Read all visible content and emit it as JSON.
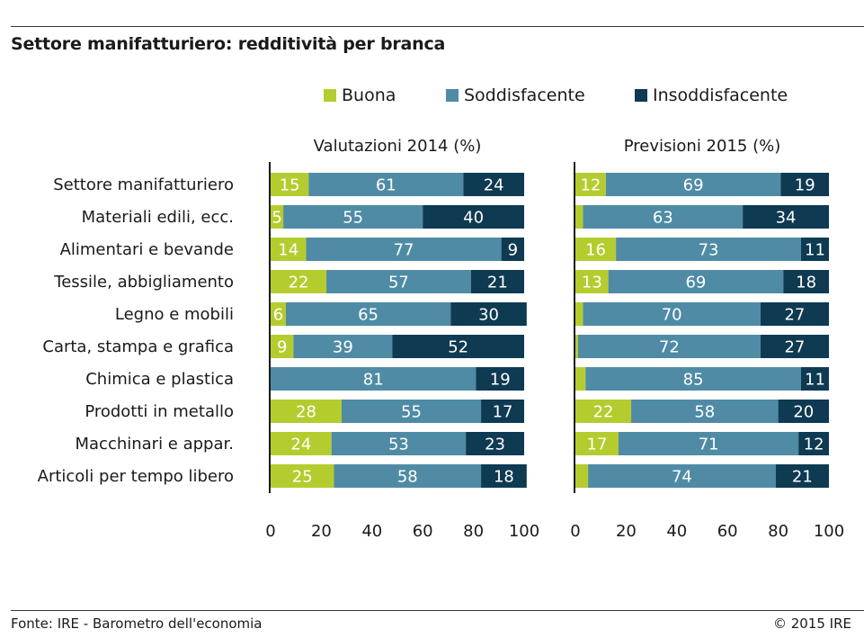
{
  "title": "Settore manifatturiero: redditività per branca",
  "legend": [
    {
      "label": "Buona",
      "color": "#b5cc2e"
    },
    {
      "label": "Soddisfacente",
      "color": "#4f8ba5"
    },
    {
      "label": "Insoddisfacente",
      "color": "#0e3a52"
    }
  ],
  "footer": {
    "source": "Fonte: IRE - Barometro dell'economia",
    "copyright": "© 2015 IRE"
  },
  "chart_data": {
    "type": "bar",
    "orientation": "horizontal-stacked",
    "categories": [
      "Settore manifatturiero",
      "Materiali edili, ecc.",
      "Alimentari e bevande",
      "Tessile, abbigliamento",
      "Legno e mobili",
      "Carta, stampa e grafica",
      "Chimica e plastica",
      "Prodotti in metallo",
      "Macchinari e appar.",
      "Articoli per tempo libero"
    ],
    "xlim": [
      0,
      100
    ],
    "xticks": [
      "0",
      "20",
      "40",
      "60",
      "80",
      "100"
    ],
    "panels": [
      {
        "title": "Valutazioni 2014 (%)",
        "series": [
          {
            "name": "Buona",
            "values": [
              15,
              5,
              14,
              22,
              6,
              9,
              0,
              28,
              24,
              25
            ],
            "labels": [
              "15",
              "5",
              "14",
              "22",
              "6",
              "9",
              "",
              "28",
              "24",
              "25"
            ]
          },
          {
            "name": "Soddisfacente",
            "values": [
              61,
              55,
              77,
              57,
              65,
              39,
              81,
              55,
              53,
              58
            ],
            "labels": [
              "61",
              "55",
              "77",
              "57",
              "65",
              "39",
              "81",
              "55",
              "53",
              "58"
            ]
          },
          {
            "name": "Insoddisfacente",
            "values": [
              24,
              40,
              9,
              21,
              30,
              52,
              19,
              17,
              23,
              18
            ],
            "labels": [
              "24",
              "40",
              "9",
              "21",
              "30",
              "52",
              "19",
              "17",
              "23",
              "18"
            ]
          }
        ]
      },
      {
        "title": "Previsioni 2015 (%)",
        "series": [
          {
            "name": "Buona",
            "values": [
              12,
              3,
              16,
              13,
              3,
              1,
              4,
              22,
              17,
              5
            ],
            "labels": [
              "12",
              "",
              "16",
              "13",
              "",
              "",
              "",
              "22",
              "17",
              ""
            ]
          },
          {
            "name": "Soddisfacente",
            "values": [
              69,
              63,
              73,
              69,
              70,
              72,
              85,
              58,
              71,
              74
            ],
            "labels": [
              "69",
              "63",
              "73",
              "69",
              "70",
              "72",
              "85",
              "58",
              "71",
              "74"
            ]
          },
          {
            "name": "Insoddisfacente",
            "values": [
              19,
              34,
              11,
              18,
              27,
              27,
              11,
              20,
              12,
              21
            ],
            "labels": [
              "19",
              "34",
              "11",
              "18",
              "27",
              "27",
              "11",
              "20",
              "12",
              "21"
            ]
          }
        ]
      }
    ]
  }
}
